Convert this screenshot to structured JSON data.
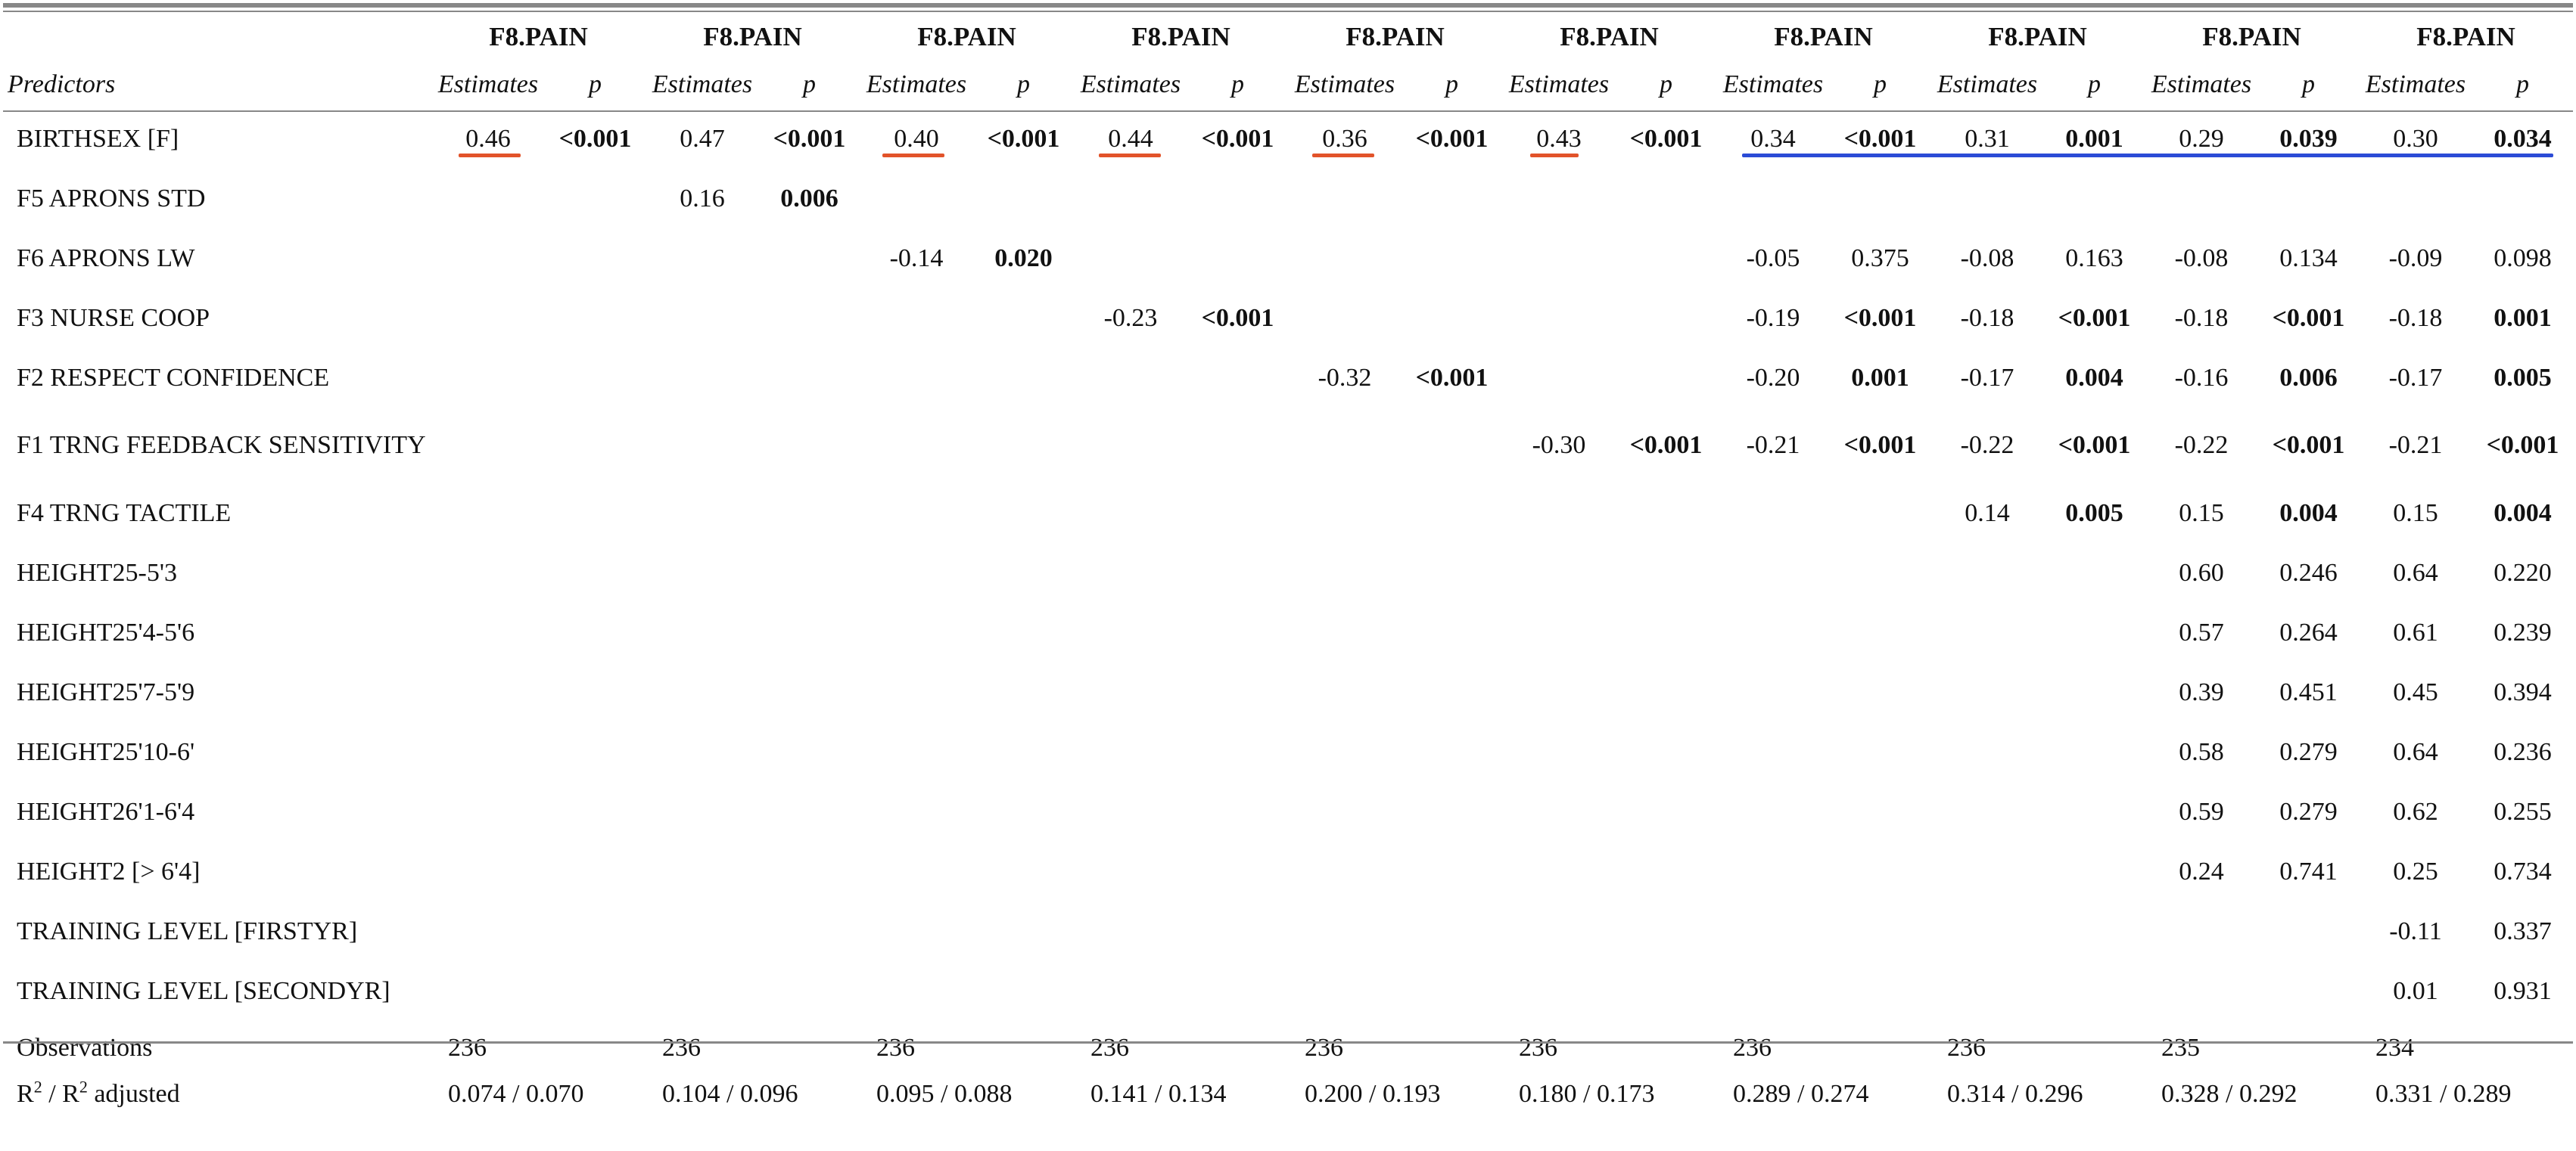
{
  "dv_label": "F8.PAIN",
  "header": {
    "predictors": "Predictors",
    "estimates": "Estimates",
    "p": "p"
  },
  "rows": [
    {
      "label": "BIRTHSEX [F]",
      "cells": [
        [
          "0.46",
          "<0.001"
        ],
        [
          "0.47",
          "<0.001"
        ],
        [
          "0.40",
          "<0.001"
        ],
        [
          "0.44",
          "<0.001"
        ],
        [
          "0.36",
          "<0.001"
        ],
        [
          "0.43",
          "<0.001"
        ],
        [
          "0.34",
          "<0.001"
        ],
        [
          "0.31",
          "0.001"
        ],
        [
          "0.29",
          "0.039"
        ],
        [
          "0.30",
          "0.034"
        ]
      ]
    },
    {
      "label": "F5 APRONS STD",
      "cells": [
        [
          "",
          ""
        ],
        [
          "0.16",
          "0.006"
        ],
        [
          "",
          ""
        ],
        [
          "",
          ""
        ],
        [
          "",
          ""
        ],
        [
          "",
          ""
        ],
        [
          "",
          ""
        ],
        [
          "",
          ""
        ],
        [
          "",
          ""
        ],
        [
          "",
          ""
        ]
      ]
    },
    {
      "label": "F6 APRONS LW",
      "cells": [
        [
          "",
          ""
        ],
        [
          "",
          ""
        ],
        [
          "-0.14",
          "0.020"
        ],
        [
          "",
          ""
        ],
        [
          "",
          ""
        ],
        [
          "",
          ""
        ],
        [
          "-0.05",
          "0.375"
        ],
        [
          "-0.08",
          "0.163"
        ],
        [
          "-0.08",
          "0.134"
        ],
        [
          "-0.09",
          "0.098"
        ]
      ]
    },
    {
      "label": "F3 NURSE COOP",
      "cells": [
        [
          "",
          ""
        ],
        [
          "",
          ""
        ],
        [
          "",
          ""
        ],
        [
          "-0.23",
          "<0.001"
        ],
        [
          "",
          ""
        ],
        [
          "",
          ""
        ],
        [
          "-0.19",
          "<0.001"
        ],
        [
          "-0.18",
          "<0.001"
        ],
        [
          "-0.18",
          "<0.001"
        ],
        [
          "-0.18",
          "0.001"
        ]
      ]
    },
    {
      "label": "F2 RESPECT CONFIDENCE",
      "cells": [
        [
          "",
          ""
        ],
        [
          "",
          ""
        ],
        [
          "",
          ""
        ],
        [
          "",
          ""
        ],
        [
          "-0.32",
          "<0.001"
        ],
        [
          "",
          ""
        ],
        [
          "-0.20",
          "0.001"
        ],
        [
          "-0.17",
          "0.004"
        ],
        [
          "-0.16",
          "0.006"
        ],
        [
          "-0.17",
          "0.005"
        ]
      ]
    },
    {
      "label": "F1 TRNG FEEDBACK SENSITIVITY",
      "cells": [
        [
          "",
          ""
        ],
        [
          "",
          ""
        ],
        [
          "",
          ""
        ],
        [
          "",
          ""
        ],
        [
          "",
          ""
        ],
        [
          "-0.30",
          "<0.001"
        ],
        [
          "-0.21",
          "<0.001"
        ],
        [
          "-0.22",
          "<0.001"
        ],
        [
          "-0.22",
          "<0.001"
        ],
        [
          "-0.21",
          "<0.001"
        ]
      ]
    },
    {
      "label": "F4 TRNG TACTILE",
      "cells": [
        [
          "",
          ""
        ],
        [
          "",
          ""
        ],
        [
          "",
          ""
        ],
        [
          "",
          ""
        ],
        [
          "",
          ""
        ],
        [
          "",
          ""
        ],
        [
          "",
          ""
        ],
        [
          "0.14",
          "0.005"
        ],
        [
          "0.15",
          "0.004"
        ],
        [
          "0.15",
          "0.004"
        ]
      ]
    },
    {
      "label": "HEIGHT25-5'3",
      "cells": [
        [
          "",
          ""
        ],
        [
          "",
          ""
        ],
        [
          "",
          ""
        ],
        [
          "",
          ""
        ],
        [
          "",
          ""
        ],
        [
          "",
          ""
        ],
        [
          "",
          ""
        ],
        [
          "",
          ""
        ],
        [
          "0.60",
          "0.246"
        ],
        [
          "0.64",
          "0.220"
        ]
      ]
    },
    {
      "label": "HEIGHT25'4-5'6",
      "cells": [
        [
          "",
          ""
        ],
        [
          "",
          ""
        ],
        [
          "",
          ""
        ],
        [
          "",
          ""
        ],
        [
          "",
          ""
        ],
        [
          "",
          ""
        ],
        [
          "",
          ""
        ],
        [
          "",
          ""
        ],
        [
          "0.57",
          "0.264"
        ],
        [
          "0.61",
          "0.239"
        ]
      ]
    },
    {
      "label": "HEIGHT25'7-5'9",
      "cells": [
        [
          "",
          ""
        ],
        [
          "",
          ""
        ],
        [
          "",
          ""
        ],
        [
          "",
          ""
        ],
        [
          "",
          ""
        ],
        [
          "",
          ""
        ],
        [
          "",
          ""
        ],
        [
          "",
          ""
        ],
        [
          "0.39",
          "0.451"
        ],
        [
          "0.45",
          "0.394"
        ]
      ]
    },
    {
      "label": "HEIGHT25'10-6'",
      "cells": [
        [
          "",
          ""
        ],
        [
          "",
          ""
        ],
        [
          "",
          ""
        ],
        [
          "",
          ""
        ],
        [
          "",
          ""
        ],
        [
          "",
          ""
        ],
        [
          "",
          ""
        ],
        [
          "",
          ""
        ],
        [
          "0.58",
          "0.279"
        ],
        [
          "0.64",
          "0.236"
        ]
      ]
    },
    {
      "label": "HEIGHT26'1-6'4",
      "cells": [
        [
          "",
          ""
        ],
        [
          "",
          ""
        ],
        [
          "",
          ""
        ],
        [
          "",
          ""
        ],
        [
          "",
          ""
        ],
        [
          "",
          ""
        ],
        [
          "",
          ""
        ],
        [
          "",
          ""
        ],
        [
          "0.59",
          "0.279"
        ],
        [
          "0.62",
          "0.255"
        ]
      ]
    },
    {
      "label": "HEIGHT2 [> 6'4]",
      "cells": [
        [
          "",
          ""
        ],
        [
          "",
          ""
        ],
        [
          "",
          ""
        ],
        [
          "",
          ""
        ],
        [
          "",
          ""
        ],
        [
          "",
          ""
        ],
        [
          "",
          ""
        ],
        [
          "",
          ""
        ],
        [
          "0.24",
          "0.741"
        ],
        [
          "0.25",
          "0.734"
        ]
      ]
    },
    {
      "label": "TRAINING LEVEL [FIRSTYR]",
      "cells": [
        [
          "",
          ""
        ],
        [
          "",
          ""
        ],
        [
          "",
          ""
        ],
        [
          "",
          ""
        ],
        [
          "",
          ""
        ],
        [
          "",
          ""
        ],
        [
          "",
          ""
        ],
        [
          "",
          ""
        ],
        [
          "",
          ""
        ],
        [
          "-0.11",
          "0.337"
        ]
      ]
    },
    {
      "label": "TRAINING LEVEL [SECONDYR]",
      "cells": [
        [
          "",
          ""
        ],
        [
          "",
          ""
        ],
        [
          "",
          ""
        ],
        [
          "",
          ""
        ],
        [
          "",
          ""
        ],
        [
          "",
          ""
        ],
        [
          "",
          ""
        ],
        [
          "",
          ""
        ],
        [
          "",
          ""
        ],
        [
          "0.01",
          "0.931"
        ]
      ]
    }
  ],
  "stats": {
    "observations_label": "Observations",
    "observations": [
      "236",
      "236",
      "236",
      "236",
      "236",
      "236",
      "236",
      "236",
      "235",
      "234"
    ],
    "r2_label_main": "R",
    "r2_label_sup": "2",
    "r2_label_mid": " / R",
    "r2_label_sup2": "2",
    "r2_label_tail": " adjusted",
    "r2": [
      "0.074 / 0.070",
      "0.104 / 0.096",
      "0.095 / 0.088",
      "0.141 / 0.134",
      "0.200 / 0.193",
      "0.180 / 0.173",
      "0.289 / 0.274",
      "0.314 / 0.296",
      "0.328 / 0.292",
      "0.331 / 0.289"
    ]
  },
  "colors": {
    "red_underline": "#e2532a",
    "blue_underline": "#2b4bd6",
    "rule": "#888888"
  }
}
